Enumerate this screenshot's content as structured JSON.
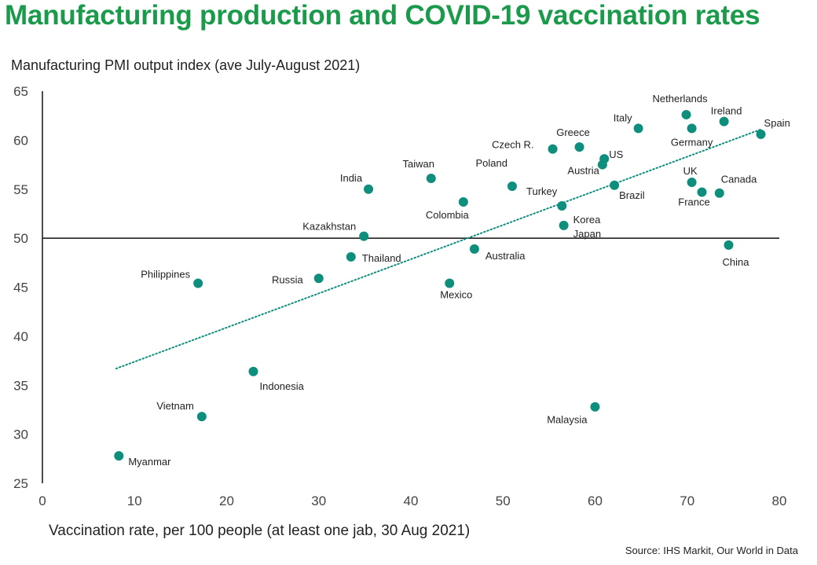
{
  "title": "Manufacturing production and COVID-19 vaccination rates",
  "source": "Source: IHS Markit, Our World in Data",
  "chart_data": {
    "type": "scatter",
    "title": "Manufacturing production and COVID-19 vaccination rates",
    "xlabel": "Vaccination rate, per 100 people (at least one jab, 30 Aug 2021)",
    "ylabel": "Manufacturing PMI output index (ave July-August 2021)",
    "xlim": [
      0,
      80
    ],
    "ylim": [
      25,
      65
    ],
    "xticks": [
      "0",
      "10",
      "20",
      "30",
      "40",
      "50",
      "60",
      "70",
      "80"
    ],
    "yticks": [
      "25",
      "30",
      "35",
      "40",
      "45",
      "50",
      "55",
      "60",
      "65"
    ],
    "reference_line_y": 50,
    "trendline": {
      "x": [
        8,
        78
      ],
      "y": [
        36.7,
        61.1
      ]
    },
    "marker_color": "#0e8f7e",
    "points": [
      {
        "label": "Netherlands",
        "x": 69.9,
        "y": 62.6
      },
      {
        "label": "Ireland",
        "x": 74.0,
        "y": 61.9
      },
      {
        "label": "Italy",
        "x": 64.7,
        "y": 61.2
      },
      {
        "label": "Spain",
        "x": 78.0,
        "y": 60.6
      },
      {
        "label": "Germany",
        "x": 70.5,
        "y": 61.2
      },
      {
        "label": "Greece",
        "x": 58.3,
        "y": 59.3
      },
      {
        "label": "Czech R.",
        "x": 55.4,
        "y": 59.1
      },
      {
        "label": "US",
        "x": 61.0,
        "y": 58.1
      },
      {
        "label": "Austria",
        "x": 60.8,
        "y": 57.5
      },
      {
        "label": "Taiwan",
        "x": 42.2,
        "y": 56.1
      },
      {
        "label": "India",
        "x": 35.4,
        "y": 55.0
      },
      {
        "label": "Poland",
        "x": 51.0,
        "y": 55.3
      },
      {
        "label": "UK",
        "x": 70.5,
        "y": 55.7
      },
      {
        "label": "Canada",
        "x": 73.5,
        "y": 54.6
      },
      {
        "label": "Brazil",
        "x": 62.1,
        "y": 55.4
      },
      {
        "label": "France",
        "x": 71.6,
        "y": 54.7
      },
      {
        "label": "Colombia",
        "x": 45.7,
        "y": 53.7
      },
      {
        "label": "Turkey",
        "x": 56.4,
        "y": 53.3
      },
      {
        "label": "Korea",
        "x": 56.6,
        "y": 51.3
      },
      {
        "label": "Japan",
        "x": 56.6,
        "y": 51.3
      },
      {
        "label": "Kazakhstan",
        "x": 34.9,
        "y": 50.2
      },
      {
        "label": "China",
        "x": 74.5,
        "y": 49.3
      },
      {
        "label": "Australia",
        "x": 46.9,
        "y": 48.9
      },
      {
        "label": "Thailand",
        "x": 33.5,
        "y": 48.1
      },
      {
        "label": "Russia",
        "x": 30.0,
        "y": 45.9
      },
      {
        "label": "Philippines",
        "x": 16.9,
        "y": 45.4
      },
      {
        "label": "Mexico",
        "x": 44.2,
        "y": 45.4
      },
      {
        "label": "Indonesia",
        "x": 22.9,
        "y": 36.4
      },
      {
        "label": "Malaysia",
        "x": 60.0,
        "y": 32.8
      },
      {
        "label": "Vietnam",
        "x": 17.3,
        "y": 31.8
      },
      {
        "label": "Myanmar",
        "x": 8.3,
        "y": 27.8
      }
    ]
  }
}
